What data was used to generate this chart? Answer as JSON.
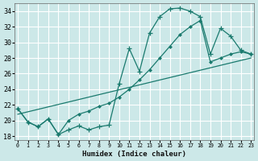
{
  "xlabel": "Humidex (Indice chaleur)",
  "x_ticks": [
    0,
    1,
    2,
    3,
    4,
    5,
    6,
    7,
    8,
    9,
    10,
    11,
    12,
    13,
    14,
    15,
    16,
    17,
    18,
    19,
    20,
    21,
    22,
    23
  ],
  "ylim": [
    17.5,
    35.0
  ],
  "xlim": [
    -0.3,
    23.3
  ],
  "yticks": [
    18,
    20,
    22,
    24,
    26,
    28,
    30,
    32,
    34
  ],
  "bg_color": "#cce8e8",
  "grid_color": "#ffffff",
  "line_color": "#1a7a6e",
  "curve_jagged_x": [
    0,
    1,
    2,
    3,
    4,
    5,
    6,
    7,
    8,
    9,
    10,
    11,
    12,
    13,
    14,
    15,
    16,
    17,
    18,
    19,
    20,
    21,
    22,
    23
  ],
  "curve_jagged_y": [
    21.5,
    19.8,
    19.2,
    20.2,
    18.2,
    18.8,
    19.3,
    18.8,
    19.2,
    19.4,
    24.7,
    29.2,
    26.3,
    31.2,
    33.3,
    34.3,
    34.4,
    34.0,
    33.3,
    28.5,
    31.8,
    30.8,
    29.0,
    28.5
  ],
  "curve_smooth_x": [
    0,
    1,
    2,
    3,
    4,
    5,
    6,
    7,
    8,
    9,
    10,
    11,
    12,
    13,
    14,
    15,
    16,
    17,
    18,
    19,
    20,
    21,
    22,
    23
  ],
  "curve_smooth_y": [
    21.5,
    19.8,
    19.2,
    20.2,
    18.2,
    20.0,
    20.8,
    21.2,
    21.8,
    22.2,
    23.0,
    24.0,
    25.2,
    26.5,
    28.0,
    29.5,
    31.0,
    32.0,
    32.8,
    27.5,
    28.0,
    28.5,
    28.8,
    28.5
  ],
  "line_x": [
    0,
    23
  ],
  "line_y": [
    20.8,
    28.0
  ]
}
